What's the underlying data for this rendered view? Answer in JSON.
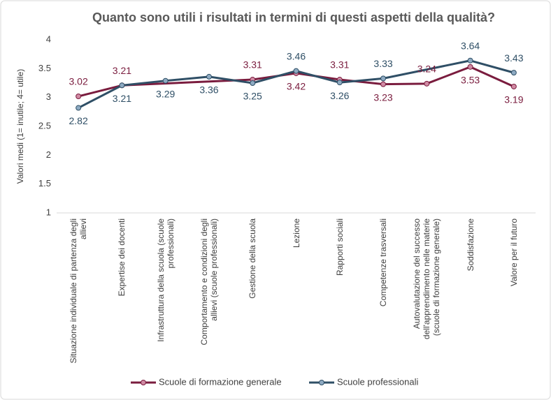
{
  "chart_data": {
    "type": "line",
    "title": "Quanto sono utili i risultati in termini di questi aspetti della qualità?",
    "y_label": "Valori medi (1= inutile; 4= utile)",
    "categories": [
      "Situazione individuale di partenza degli allievi",
      "Expertise dei docenti",
      "Infrastruttura della scuola (scuole professionali)",
      "Comportamento e condizioni degli allievi (scuole professionali)",
      "Gestione della scuola",
      "Lezione",
      "Rapporti sociali",
      "Competenze trasversali",
      "Autovalutazione del successo dell'apprendimento nelle materie (scuole di formazione generale)",
      "Soddisfazione",
      "Valore per il futuro"
    ],
    "series": [
      {
        "name": "Scuole di formazione generale",
        "color": "#7a1c3e",
        "marker_color": "#d08aa3",
        "values": [
          3.02,
          3.21,
          null,
          null,
          3.31,
          3.42,
          3.31,
          3.23,
          3.24,
          3.53,
          3.19
        ]
      },
      {
        "name": "Scuole professionali",
        "color": "#2f4f66",
        "marker_color": "#8eaac2",
        "values": [
          2.82,
          3.21,
          3.29,
          3.36,
          3.25,
          3.46,
          3.26,
          3.33,
          null,
          3.64,
          3.43
        ]
      }
    ],
    "ylim": [
      1,
      4
    ],
    "yticks": [
      1,
      {
        "value": 1.5,
        "label": "1.5"
      },
      2,
      {
        "value": 2.5,
        "label": "2.5"
      },
      3,
      {
        "value": 3.5,
        "label": "3.5"
      },
      4
    ],
    "connect_gaps": true,
    "legend": "bottom"
  }
}
